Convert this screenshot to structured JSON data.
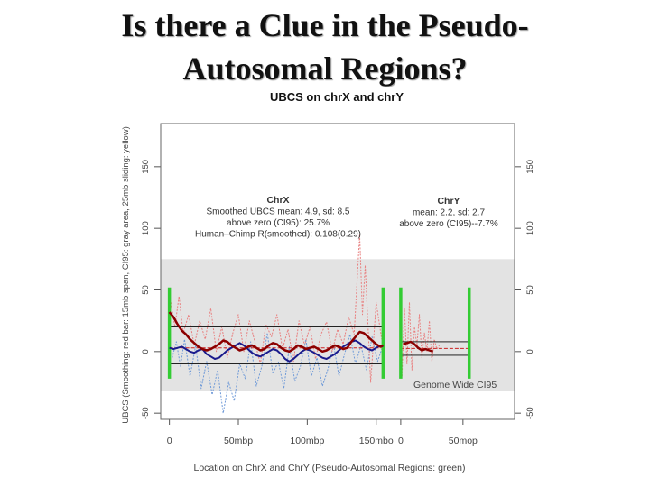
{
  "slide": {
    "title_line1": "Is there a Clue in the Pseudo-",
    "title_line2": "Autosomal Regions?"
  },
  "chart_data": {
    "type": "line",
    "title": "UBCS on chrX and chrY",
    "xlabel": "Location on ChrX and ChrY (Pseudo-Autosomal Regions: green)",
    "ylabel": "UBCS (Smoothing: red bar: 15mb span, CI95: gray area, 25mb sliding: yellow)",
    "ylim": [
      -55,
      185
    ],
    "yticks": [
      -50,
      0,
      50,
      100,
      150
    ],
    "ci95_band": [
      -32,
      75
    ],
    "ci95_label": "Genome Wide CI95",
    "colors": {
      "ci95": "#e3e3e3",
      "smoothed": "#8b0000",
      "sliding": "#1a1a8c",
      "raw_red": "#e88080",
      "raw_blue": "#6f9ad8",
      "par": "#33cc33",
      "mean": "#cc2222"
    },
    "panels": [
      {
        "name": "ChrX",
        "xlim": [
          -5,
          160
        ],
        "xticks": [
          0,
          50,
          100,
          150
        ],
        "xtick_labels": [
          "0",
          "50mbp",
          "100mbp",
          "150mbo"
        ],
        "par_lines": [
          0,
          155
        ],
        "box": [
          0,
          155,
          -10,
          20
        ],
        "mean_line": 3,
        "annotations": [
          "ChrX",
          "Smoothed UBCS mean: 4.9, sd: 8.5",
          "above zero (CI95): 25.7%",
          "Human–Chimp R(smoothed): 0.108(0.29)"
        ],
        "smoothed": {
          "x": [
            0,
            3,
            6,
            9,
            12,
            15,
            18,
            21,
            24,
            27,
            30,
            33,
            36,
            39,
            42,
            45,
            48,
            51,
            54,
            57,
            60,
            63,
            66,
            69,
            72,
            75,
            78,
            81,
            84,
            87,
            90,
            93,
            96,
            99,
            102,
            105,
            108,
            111,
            114,
            117,
            120,
            123,
            126,
            129,
            132,
            135,
            138,
            141,
            144,
            147,
            150,
            153,
            155
          ],
          "y": [
            32,
            28,
            22,
            17,
            14,
            10,
            7,
            4,
            2,
            1,
            2,
            4,
            6,
            9,
            8,
            5,
            3,
            1,
            2,
            4,
            5,
            3,
            1,
            2,
            5,
            7,
            6,
            3,
            1,
            0,
            2,
            5,
            4,
            2,
            3,
            4,
            2,
            0,
            1,
            3,
            5,
            4,
            2,
            3,
            8,
            12,
            16,
            15,
            12,
            9,
            6,
            4,
            5
          ]
        },
        "sliding": {
          "x": [
            0,
            3,
            6,
            9,
            12,
            15,
            18,
            21,
            24,
            27,
            30,
            33,
            36,
            39,
            42,
            45,
            48,
            51,
            54,
            57,
            60,
            63,
            66,
            69,
            72,
            75,
            78,
            81,
            84,
            87,
            90,
            93,
            96,
            99,
            102,
            105,
            108,
            111,
            114,
            117,
            120,
            123,
            126,
            129,
            132,
            135,
            138,
            141,
            144,
            147,
            150,
            153,
            155
          ],
          "y": [
            3,
            2,
            3,
            4,
            2,
            0,
            -1,
            1,
            2,
            -2,
            -4,
            -6,
            -5,
            -2,
            1,
            3,
            5,
            7,
            5,
            2,
            -1,
            -3,
            -4,
            -2,
            0,
            2,
            1,
            -2,
            -6,
            -8,
            -6,
            -3,
            0,
            2,
            1,
            -1,
            -3,
            -5,
            -6,
            -4,
            -2,
            1,
            4,
            6,
            8,
            9,
            7,
            4,
            2,
            1,
            3,
            5,
            4
          ]
        },
        "raw_red": {
          "x": [
            1,
            4,
            7,
            10,
            14,
            18,
            22,
            26,
            30,
            34,
            38,
            42,
            46,
            50,
            54,
            58,
            62,
            66,
            70,
            74,
            78,
            82,
            86,
            90,
            94,
            98,
            102,
            106,
            110,
            114,
            118,
            122,
            126,
            130,
            134,
            138,
            140,
            142,
            146,
            150,
            154
          ],
          "y": [
            40,
            20,
            45,
            15,
            30,
            5,
            25,
            10,
            35,
            0,
            20,
            -5,
            15,
            30,
            0,
            25,
            8,
            -10,
            22,
            12,
            30,
            2,
            18,
            -8,
            25,
            5,
            20,
            -6,
            14,
            24,
            0,
            18,
            6,
            28,
            14,
            95,
            30,
            70,
            -25,
            40,
            10
          ]
        },
        "raw_blue": {
          "x": [
            2,
            5,
            8,
            11,
            15,
            19,
            23,
            27,
            31,
            35,
            39,
            43,
            47,
            51,
            55,
            59,
            63,
            67,
            71,
            75,
            79,
            83,
            87,
            91,
            95,
            99,
            103,
            107,
            111,
            115,
            119,
            123,
            127,
            131,
            135,
            139,
            143,
            147,
            151,
            154
          ],
          "y": [
            -5,
            8,
            -12,
            10,
            -20,
            5,
            -30,
            -8,
            -35,
            -15,
            -50,
            -25,
            -40,
            -10,
            -22,
            8,
            -28,
            -12,
            15,
            -18,
            -8,
            -30,
            4,
            -24,
            -12,
            10,
            -20,
            -5,
            -28,
            -14,
            6,
            -20,
            -2,
            14,
            -10,
            5,
            -15,
            12,
            -8,
            2
          ]
        }
      },
      {
        "name": "ChrY",
        "xlim": [
          -5,
          90
        ],
        "xticks": [
          0,
          50
        ],
        "xtick_labels": [
          "0",
          "50mop"
        ],
        "par_lines": [
          0,
          55
        ],
        "box": [
          0,
          55,
          -3,
          8
        ],
        "mean_line": 2.5,
        "annotations": [
          "ChrY",
          "mean: 2.2, sd: 2.7",
          "above zero (CI95)--7.7%"
        ],
        "smoothed": {
          "x": [
            2,
            5,
            8,
            11,
            14,
            17,
            20,
            23,
            26
          ],
          "y": [
            6,
            7,
            8,
            6,
            3,
            1,
            2,
            1,
            0
          ]
        },
        "raw_red": {
          "x": [
            1,
            3,
            5,
            7,
            9,
            11,
            13,
            15,
            17,
            19,
            21,
            23,
            25,
            27,
            29,
            31
          ],
          "y": [
            -20,
            35,
            -10,
            40,
            -15,
            20,
            5,
            30,
            -5,
            15,
            0,
            25,
            -8,
            10,
            2,
            5
          ]
        }
      }
    ]
  }
}
